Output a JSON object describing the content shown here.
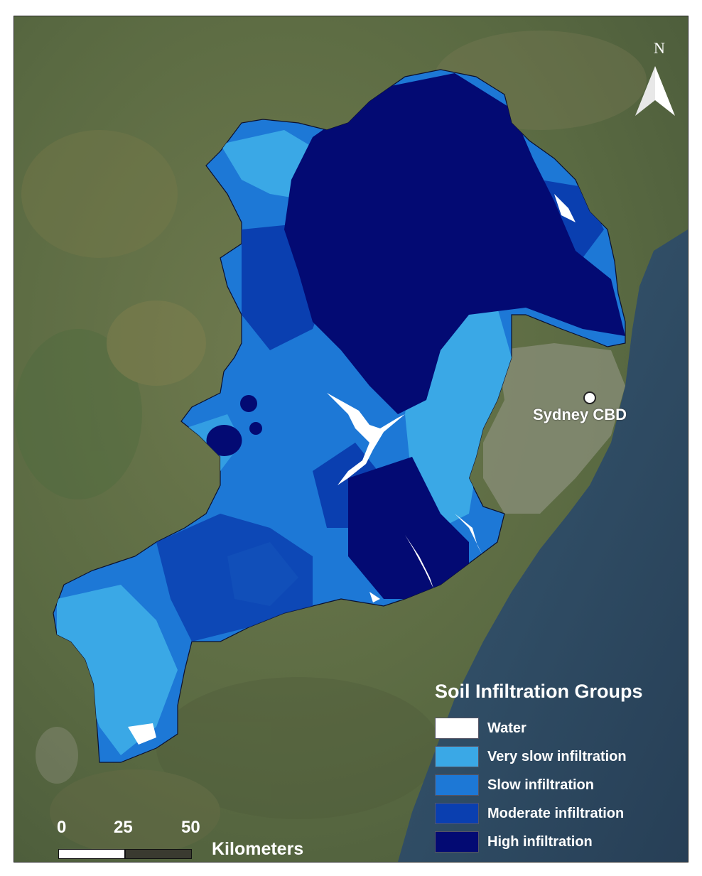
{
  "map": {
    "north_label": "N",
    "city": {
      "name": "Sydney CBD"
    },
    "legend": {
      "title": "Soil Infiltration Groups",
      "items": [
        {
          "label": "Water",
          "color": "#ffffff"
        },
        {
          "label": "Very slow infiltration",
          "color": "#3aa8e6"
        },
        {
          "label": "Slow infiltration",
          "color": "#1d78d6"
        },
        {
          "label": "Moderate infiltration",
          "color": "#0a3fb0"
        },
        {
          "label": "High infiltration",
          "color": "#030a73"
        }
      ]
    },
    "scalebar": {
      "ticks": [
        "0",
        "25",
        "50"
      ],
      "unit": "Kilometers"
    },
    "colors": {
      "land": "#5b6a44",
      "ocean": "#2f4a63"
    }
  }
}
